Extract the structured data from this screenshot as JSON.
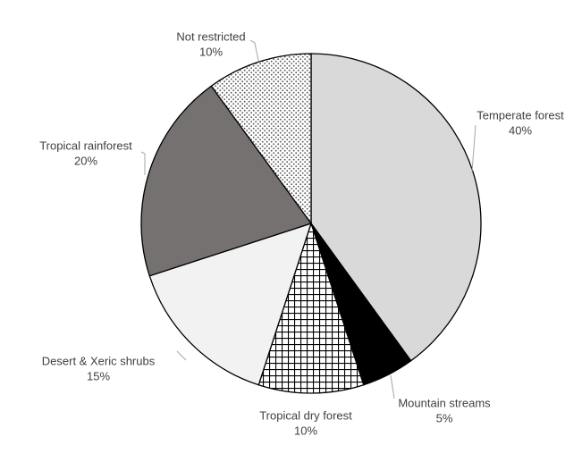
{
  "chart_data": {
    "type": "pie",
    "categories": [
      "Temperate forest",
      "Mountain streams",
      "Tropical dry forest",
      "Desert & Xeric shrubs",
      "Tropical rainforest",
      "Not restricted"
    ],
    "values": [
      40,
      5,
      10,
      15,
      20,
      10
    ],
    "value_labels": [
      "40%",
      "5%",
      "10%",
      "15%",
      "20%",
      "10%"
    ],
    "colors": [
      "#d9d9d9",
      "#000000",
      "#ffffff",
      "#f2f2f2",
      "#767171",
      "#ffffff"
    ],
    "patterns": [
      null,
      null,
      "crosshatch",
      null,
      null,
      "dots"
    ],
    "start_angle": 90,
    "direction": "clockwise"
  }
}
